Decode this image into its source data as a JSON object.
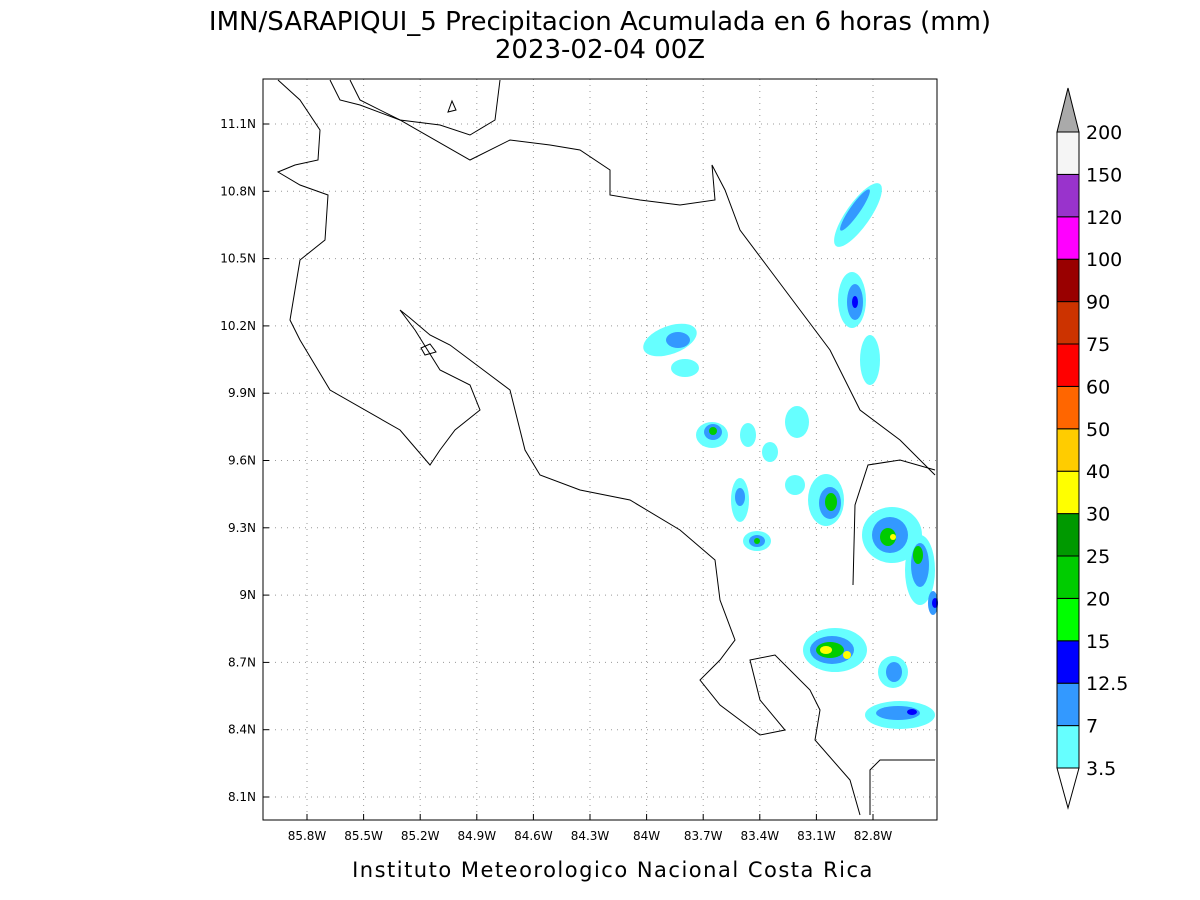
{
  "title": "IMN/SARAPIQUI_5 Precipitacion Acumulada en 6 horas (mm)",
  "subtitle": "2023-02-04 00Z",
  "map": {
    "lon_labels": [
      "85.8W",
      "85.5W",
      "85.2W",
      "84.9W",
      "84.6W",
      "84.3W",
      "84W",
      "83.7W",
      "83.4W",
      "83.1W",
      "82.8W"
    ],
    "lat_labels": [
      "11.1N",
      "10.8N",
      "10.5N",
      "10.2N",
      "9.9N",
      "9.6N",
      "9.3N",
      "9N",
      "8.7N",
      "8.4N",
      "8.1N"
    ]
  },
  "colorbar": {
    "labels": [
      "3.5",
      "7",
      "12.5",
      "15",
      "20",
      "25",
      "30",
      "40",
      "50",
      "60",
      "75",
      "90",
      "100",
      "120",
      "150",
      "200"
    ],
    "colors": [
      "#66ffff",
      "#3399ff",
      "#0000ff",
      "#00ff00",
      "#00cc00",
      "#009900",
      "#ffff00",
      "#ffcc00",
      "#ff6600",
      "#ff0000",
      "#cc3300",
      "#990000",
      "#ff00ff",
      "#9933cc",
      "#f5f5f5"
    ],
    "under_color": "#ffffff",
    "over_color": "#aaaaaa"
  },
  "footer": "Instituto Meteorologico Nacional Costa Rica"
}
